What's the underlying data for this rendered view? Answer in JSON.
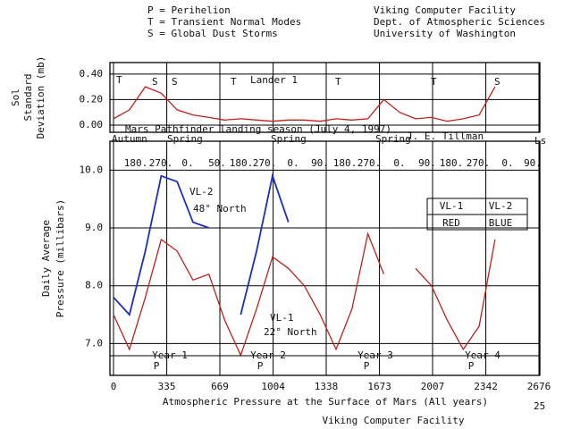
{
  "header": {
    "legend_lines": [
      "P = Perihelion",
      "T = Transient Normal Modes",
      "S = Global Dust Storms"
    ],
    "credit_lines": [
      "Viking Computer Facility",
      "Dept. of Atmospheric Sciences",
      "University of Washington"
    ]
  },
  "chart_data": [
    {
      "type": "line",
      "ylabel": [
        "Sol",
        "Standard",
        "Deviation (mb)"
      ],
      "x": [
        0,
        100,
        200,
        300,
        400,
        500,
        600,
        700,
        800,
        900,
        1000,
        1100,
        1200,
        1300,
        1400,
        1500,
        1600,
        1700,
        1800,
        1900,
        2000,
        2100,
        2200,
        2300,
        2400,
        2500,
        2600
      ],
      "series": [
        {
          "name": "VL-1",
          "color": "#c0201a",
          "values": [
            0.05,
            0.12,
            0.3,
            0.25,
            0.12,
            0.08,
            0.06,
            0.04,
            0.05,
            0.04,
            0.03,
            0.04,
            0.04,
            0.03,
            0.05,
            0.04,
            0.05,
            0.2,
            0.1,
            0.05,
            0.06,
            0.03,
            0.05,
            0.08,
            0.3,
            null,
            null
          ]
        }
      ],
      "xlim": [
        0,
        2676
      ],
      "ylim": [
        -0.056,
        0.49
      ],
      "yticks": [
        {
          "value": 0,
          "label": "0.00"
        },
        {
          "value": 0.2,
          "label": "0.20"
        },
        {
          "value": 0.4,
          "label": "0.40"
        }
      ],
      "grid": true,
      "annotations": [
        "T",
        "S",
        "S",
        "T",
        "T",
        "T",
        "S",
        "Lander 1",
        "Mars Pathfinder landing season (July 4, 1997)",
        "Autumn",
        "Spring",
        "Spring",
        "Spring",
        "J. E. Tillman",
        "Ls"
      ]
    },
    {
      "type": "line",
      "ylabel": [
        "Daily Average",
        "Pressure (millibars)"
      ],
      "xlabel": "Atmospheric Pressure at the Surface of Mars (All years)",
      "x": [
        0,
        100,
        200,
        300,
        400,
        500,
        600,
        700,
        800,
        900,
        1000,
        1100,
        1200,
        1300,
        1400,
        1500,
        1600,
        1700,
        1800,
        1900,
        2000,
        2100,
        2200,
        2300,
        2400,
        2500,
        2600
      ],
      "series": [
        {
          "name": "VL-2",
          "color": "#1a2fc0",
          "values": [
            7.8,
            7.5,
            8.6,
            9.9,
            9.8,
            9.1,
            9.0,
            null,
            7.5,
            8.6,
            9.9,
            9.1,
            null,
            null,
            null,
            null,
            null,
            null,
            null,
            null,
            null,
            null,
            null,
            null,
            null,
            null,
            null
          ]
        },
        {
          "name": "VL-1",
          "color": "#c0201a",
          "values": [
            7.5,
            6.9,
            7.8,
            8.8,
            8.6,
            8.1,
            8.2,
            7.4,
            6.8,
            7.6,
            8.5,
            8.3,
            8.0,
            7.5,
            6.9,
            7.6,
            8.9,
            8.2,
            null,
            8.3,
            8.0,
            7.4,
            6.9,
            7.3,
            8.8,
            null,
            null
          ]
        }
      ],
      "xlim": [
        0,
        2676
      ],
      "ylim": [
        6.45,
        10.5
      ],
      "xticks": [
        0,
        335,
        669,
        1004,
        1338,
        1673,
        2007,
        2342,
        2676
      ],
      "yticks": [
        {
          "value": 7,
          "label": "7.0"
        },
        {
          "value": 8,
          "label": "8.0"
        },
        {
          "value": 9,
          "label": "9.0"
        },
        {
          "value": 10,
          "label": "10.0"
        }
      ],
      "grid": true,
      "ls_labels": [
        "180.",
        "270.",
        "0.",
        "50.",
        "180.",
        "270.",
        "0.",
        "90.",
        "180.",
        "270.",
        "0.",
        "90.",
        "180.",
        "270.",
        "0.",
        "90."
      ],
      "annotations": [
        "VL-2",
        "48° North",
        "VL-1",
        "22° North"
      ],
      "legend_table": {
        "names": [
          "VL-1",
          "VL-2"
        ],
        "colors": [
          "RED",
          "BLUE"
        ]
      },
      "years": [
        "Year 1",
        "Year 2",
        "Year 3",
        "Year 4"
      ],
      "perihelion": [
        "P",
        "P",
        "P",
        "P"
      ]
    }
  ],
  "footer": {
    "title": "Viking Computer Facility",
    "page": "25"
  }
}
